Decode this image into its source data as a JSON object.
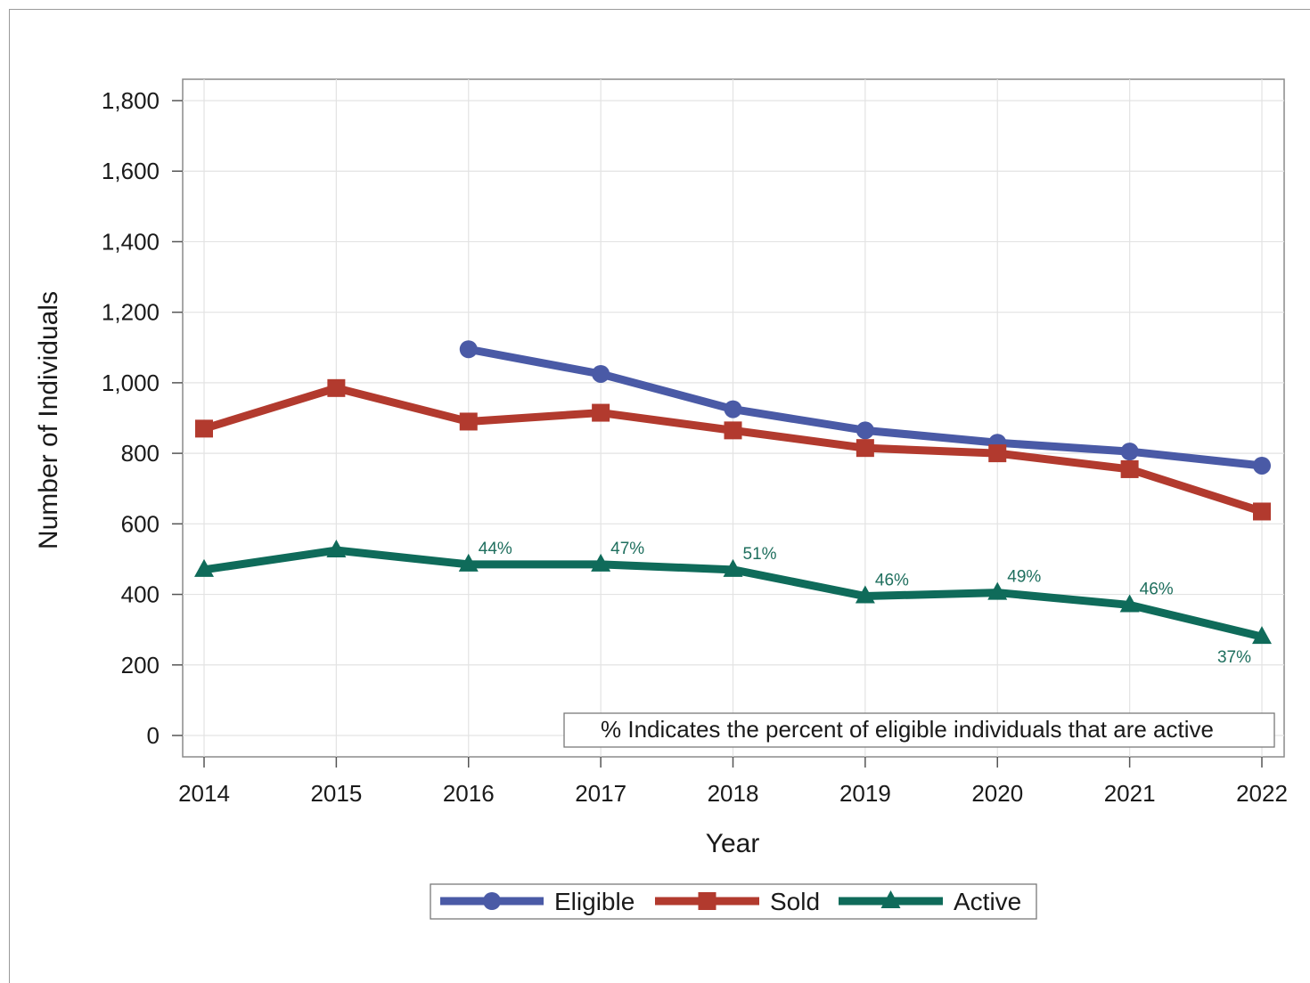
{
  "chart_data": {
    "type": "line",
    "xlabel": "Year",
    "ylabel": "Number of Individuals",
    "ylim": [
      0,
      1800
    ],
    "yticks": [
      0,
      200,
      400,
      600,
      800,
      1000,
      1200,
      1400,
      1600,
      1800
    ],
    "ytick_labels": [
      "0",
      "200",
      "400",
      "600",
      "800",
      "1,000",
      "1,200",
      "1,400",
      "1,600",
      "1,800"
    ],
    "categories": [
      "2014",
      "2015",
      "2016",
      "2017",
      "2018",
      "2019",
      "2020",
      "2021",
      "2022"
    ],
    "grid": true,
    "legend_position": "bottom",
    "note": "% Indicates the percent of eligible individuals that are active",
    "series": [
      {
        "name": "Eligible",
        "color": "#4a5aa6",
        "marker": "circle",
        "values": [
          null,
          null,
          1095,
          1025,
          925,
          865,
          830,
          805,
          765
        ]
      },
      {
        "name": "Sold",
        "color": "#b23a2e",
        "marker": "square",
        "values": [
          870,
          985,
          890,
          915,
          865,
          815,
          800,
          755,
          635
        ]
      },
      {
        "name": "Active",
        "color": "#0f6b5a",
        "marker": "triangle",
        "values": [
          470,
          525,
          485,
          485,
          470,
          395,
          405,
          370,
          280
        ],
        "labels": [
          null,
          null,
          "44%",
          "47%",
          "51%",
          "46%",
          "49%",
          "46%",
          "37%"
        ]
      }
    ]
  }
}
